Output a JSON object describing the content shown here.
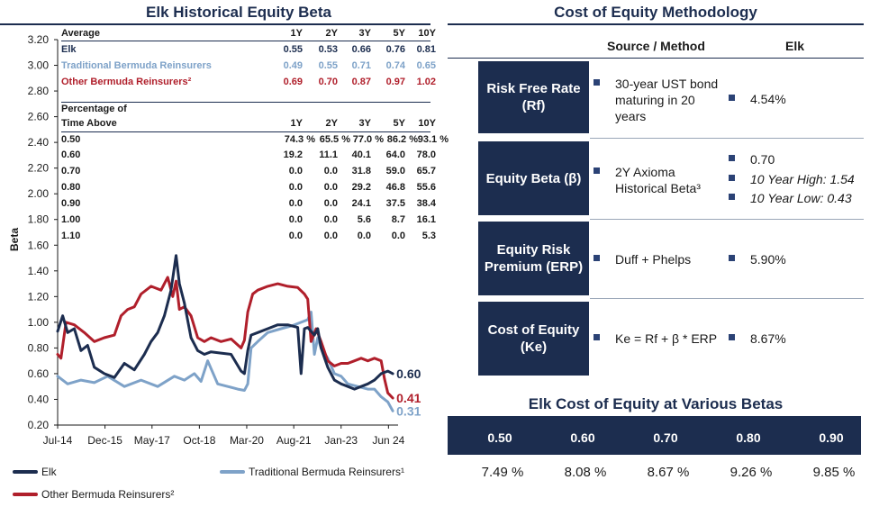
{
  "left_title": "Elk Historical Equity Beta",
  "right_title": "Cost of Equity Methodology",
  "stats_table": {
    "average_header": "Average",
    "periods": [
      "1Y",
      "2Y",
      "3Y",
      "5Y",
      "10Y"
    ],
    "averages": [
      {
        "name": "Elk",
        "values": [
          "0.55",
          "0.53",
          "0.66",
          "0.76",
          "0.81"
        ],
        "color": "#1c2d4f"
      },
      {
        "name": "Traditional Bermuda Reinsurers",
        "values": [
          "0.49",
          "0.55",
          "0.71",
          "0.74",
          "0.65"
        ],
        "color": "#7ea2c8"
      },
      {
        "name": "Other Bermuda Reinsurers²",
        "values": [
          "0.69",
          "0.70",
          "0.87",
          "0.97",
          "1.02"
        ],
        "color": "#b01f2b"
      }
    ],
    "pct_header_line1": "Percentage of",
    "pct_header_line2": "Time Above",
    "pct_rows": [
      {
        "threshold": "0.50",
        "values": [
          "74.3 %",
          "65.5 %",
          "77.0 %",
          "86.2 %",
          "93.1 %"
        ]
      },
      {
        "threshold": "0.60",
        "values": [
          "19.2",
          "11.1",
          "40.1",
          "64.0",
          "78.0"
        ]
      },
      {
        "threshold": "0.70",
        "values": [
          "0.0",
          "0.0",
          "31.8",
          "59.0",
          "65.7"
        ]
      },
      {
        "threshold": "0.80",
        "values": [
          "0.0",
          "0.0",
          "29.2",
          "46.8",
          "55.6"
        ]
      },
      {
        "threshold": "0.90",
        "values": [
          "0.0",
          "0.0",
          "24.1",
          "37.5",
          "38.4"
        ]
      },
      {
        "threshold": "1.00",
        "values": [
          "0.0",
          "0.0",
          "5.6",
          "8.7",
          "16.1"
        ]
      },
      {
        "threshold": "1.10",
        "values": [
          "0.0",
          "0.0",
          "0.0",
          "0.0",
          "5.3"
        ]
      }
    ]
  },
  "chart_data": {
    "type": "line",
    "title": "Elk Historical Equity Beta",
    "xlabel": "",
    "ylabel": "Beta",
    "ylim": [
      0.2,
      3.2
    ],
    "yticks": [
      "3.20",
      "3.00",
      "2.80",
      "2.60",
      "2.40",
      "2.20",
      "2.00",
      "1.80",
      "1.60",
      "1.40",
      "1.20",
      "1.00",
      "0.80",
      "0.60",
      "0.40",
      "0.20"
    ],
    "xlim": [
      2014.5,
      2024.6
    ],
    "xticks": [
      {
        "label": "Jul-14",
        "x": 2014.5
      },
      {
        "label": "Dec-15",
        "x": 2015.92
      },
      {
        "label": "May-17",
        "x": 2017.33
      },
      {
        "label": "Oct-18",
        "x": 2018.75
      },
      {
        "label": "Mar-20",
        "x": 2020.17
      },
      {
        "label": "Aug-21",
        "x": 2021.58
      },
      {
        "label": "Jan-23",
        "x": 2023.0
      },
      {
        "label": "Jun 24",
        "x": 2024.42
      }
    ],
    "series": [
      {
        "name": "Elk",
        "color": "#1c2d4f",
        "end_label": "0.60",
        "x": [
          2014.5,
          2014.65,
          2014.8,
          2015.0,
          2015.2,
          2015.4,
          2015.6,
          2015.9,
          2016.2,
          2016.5,
          2016.8,
          2017.1,
          2017.3,
          2017.5,
          2017.7,
          2017.9,
          2018.05,
          2018.15,
          2018.3,
          2018.5,
          2018.7,
          2018.9,
          2019.1,
          2019.4,
          2019.7,
          2020.0,
          2020.1,
          2020.2,
          2020.3,
          2020.5,
          2020.8,
          2021.1,
          2021.4,
          2021.7,
          2021.8,
          2021.9,
          2022.0,
          2022.2,
          2022.3,
          2022.4,
          2022.6,
          2022.8,
          2023.0,
          2023.2,
          2023.4,
          2023.6,
          2023.8,
          2024.0,
          2024.2,
          2024.4,
          2024.55
        ],
        "y": [
          0.93,
          1.05,
          0.92,
          0.95,
          0.78,
          0.82,
          0.65,
          0.6,
          0.57,
          0.68,
          0.63,
          0.75,
          0.85,
          0.92,
          1.05,
          1.25,
          1.52,
          1.3,
          1.15,
          0.88,
          0.78,
          0.75,
          0.77,
          0.76,
          0.75,
          0.62,
          0.6,
          0.78,
          0.9,
          0.92,
          0.95,
          0.98,
          0.98,
          0.96,
          0.6,
          0.95,
          0.96,
          0.9,
          0.95,
          0.8,
          0.65,
          0.55,
          0.52,
          0.5,
          0.48,
          0.5,
          0.52,
          0.55,
          0.6,
          0.62,
          0.6
        ]
      },
      {
        "name": "Traditional Bermuda Reinsurers¹",
        "color": "#7ea2c8",
        "end_label": "0.31",
        "x": [
          2014.5,
          2014.8,
          2015.2,
          2015.6,
          2016.0,
          2016.5,
          2017.0,
          2017.5,
          2018.0,
          2018.3,
          2018.6,
          2018.8,
          2019.0,
          2019.3,
          2019.6,
          2019.9,
          2020.1,
          2020.2,
          2020.3,
          2020.5,
          2020.8,
          2021.2,
          2021.5,
          2021.8,
          2022.0,
          2022.1,
          2022.2,
          2022.3,
          2022.4,
          2022.6,
          2022.8,
          2023.0,
          2023.2,
          2023.5,
          2023.8,
          2024.0,
          2024.2,
          2024.4,
          2024.55
        ],
        "y": [
          0.58,
          0.52,
          0.55,
          0.53,
          0.58,
          0.5,
          0.55,
          0.5,
          0.58,
          0.55,
          0.6,
          0.54,
          0.7,
          0.52,
          0.5,
          0.48,
          0.47,
          0.52,
          0.8,
          0.85,
          0.92,
          0.95,
          0.97,
          1.0,
          1.02,
          1.08,
          0.75,
          0.88,
          0.8,
          0.72,
          0.6,
          0.58,
          0.52,
          0.5,
          0.48,
          0.48,
          0.42,
          0.38,
          0.31
        ]
      },
      {
        "name": "Other Bermuda Reinsurers²",
        "color": "#b01f2b",
        "end_label": "0.41",
        "x": [
          2014.5,
          2014.6,
          2014.75,
          2015.0,
          2015.3,
          2015.6,
          2015.9,
          2016.2,
          2016.4,
          2016.6,
          2016.8,
          2017.0,
          2017.3,
          2017.6,
          2017.8,
          2017.95,
          2018.05,
          2018.15,
          2018.3,
          2018.5,
          2018.7,
          2018.9,
          2019.1,
          2019.4,
          2019.7,
          2020.0,
          2020.1,
          2020.2,
          2020.35,
          2020.5,
          2020.8,
          2021.1,
          2021.4,
          2021.7,
          2021.9,
          2022.0,
          2022.1,
          2022.25,
          2022.4,
          2022.6,
          2022.8,
          2023.0,
          2023.2,
          2023.4,
          2023.6,
          2023.8,
          2024.0,
          2024.2,
          2024.3,
          2024.4,
          2024.55
        ],
        "y": [
          0.75,
          0.72,
          1.0,
          0.98,
          0.92,
          0.85,
          0.88,
          0.9,
          1.05,
          1.1,
          1.12,
          1.22,
          1.28,
          1.25,
          1.35,
          1.2,
          1.32,
          1.1,
          1.12,
          1.05,
          0.88,
          0.85,
          0.88,
          0.85,
          0.87,
          0.8,
          0.86,
          1.08,
          1.22,
          1.25,
          1.28,
          1.3,
          1.28,
          1.27,
          1.22,
          1.18,
          0.85,
          0.95,
          0.85,
          0.7,
          0.66,
          0.68,
          0.68,
          0.7,
          0.72,
          0.7,
          0.72,
          0.7,
          0.56,
          0.45,
          0.41
        ]
      }
    ]
  },
  "legend": {
    "elk": "Elk",
    "traditional": "Traditional Bermuda Reinsurers¹",
    "other": "Other Bermuda Reinsurers²"
  },
  "methodology": {
    "col_source": "Source / Method",
    "col_elk": "Elk",
    "rows": [
      {
        "label_line1": "Risk Free Rate",
        "label_line2": "(Rf)",
        "source_lines": [
          "30-year UST bond",
          "maturing in 20",
          "years"
        ],
        "elk_values": [
          "4.54%"
        ]
      },
      {
        "label_line1": "Equity Beta (β)",
        "label_line2": "",
        "source_lines": [
          "2Y Axioma",
          "Historical Beta³"
        ],
        "elk_values": [
          "0.70",
          "10 Year High: 1.54",
          "10 Year Low: 0.43"
        ]
      },
      {
        "label_line1": "Equity Risk",
        "label_line2": "Premium (ERP)",
        "source_lines": [
          "Duff + Phelps"
        ],
        "elk_values": [
          "5.90%"
        ]
      },
      {
        "label_line1": "Cost of Equity",
        "label_line2": "(Ke)",
        "source_lines": [
          "Ke = Rf + β * ERP"
        ],
        "elk_values": [
          "8.67%"
        ]
      }
    ]
  },
  "betas_section": {
    "title": "Elk Cost of Equity at Various Betas",
    "betas": [
      "0.50",
      "0.60",
      "0.70",
      "0.80",
      "0.90"
    ],
    "costs": [
      "7.49 %",
      "8.08 %",
      "8.67 %",
      "9.26 %",
      "9.85 %"
    ]
  }
}
